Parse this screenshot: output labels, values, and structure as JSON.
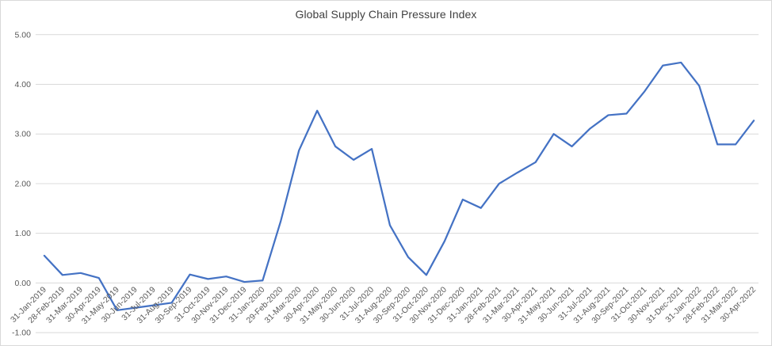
{
  "chart_data": {
    "type": "line",
    "title": "Global Supply Chain Pressure Index",
    "categories": [
      "31-Jan-2019",
      "28-Feb-2019",
      "31-Mar-2019",
      "30-Apr-2019",
      "31-May-2019",
      "30-Jun-2019",
      "31-Jul-2019",
      "31-Aug-2019",
      "30-Sep-2019",
      "31-Oct-2019",
      "30-Nov-2019",
      "31-Dec-2019",
      "31-Jan-2020",
      "29-Feb-2020",
      "31-Mar-2020",
      "30-Apr-2020",
      "31-May-2020",
      "30-Jun-2020",
      "31-Jul-2020",
      "31-Aug-2020",
      "30-Sep-2020",
      "31-Oct-2020",
      "30-Nov-2020",
      "31-Dec-2020",
      "31-Jan-2021",
      "28-Feb-2021",
      "31-Mar-2021",
      "30-Apr-2021",
      "31-May-2021",
      "30-Jun-2021",
      "31-Jul-2021",
      "31-Aug-2021",
      "30-Sep-2021",
      "31-Oct-2021",
      "30-Nov-2021",
      "31-Dec-2021",
      "31-Jan-2022",
      "28-Feb-2022",
      "31-Mar-2022",
      "30-Apr-2022"
    ],
    "values": [
      0.55,
      0.16,
      0.2,
      0.1,
      -0.55,
      -0.5,
      -0.45,
      -0.4,
      0.17,
      0.08,
      0.13,
      0.02,
      0.05,
      1.25,
      2.67,
      3.47,
      2.75,
      2.48,
      2.7,
      1.16,
      0.52,
      0.16,
      0.84,
      1.68,
      1.51,
      2.0,
      2.22,
      2.43,
      3.0,
      2.75,
      3.11,
      3.38,
      3.41,
      3.86,
      4.38,
      4.44,
      3.97,
      2.79,
      2.79,
      3.27
    ],
    "ylim": [
      -1,
      5
    ],
    "ytick_step": 1,
    "ytick_decimals": 2,
    "ytick_labels": [
      "-1.00",
      "0.00",
      "1.00",
      "2.00",
      "3.00",
      "4.00",
      "5.00"
    ],
    "grid": true,
    "legend": false,
    "line_color": "#4472C4",
    "gridline_color": "#D9D9D9",
    "axis_label_color": "#595959",
    "title_color": "#404040"
  }
}
